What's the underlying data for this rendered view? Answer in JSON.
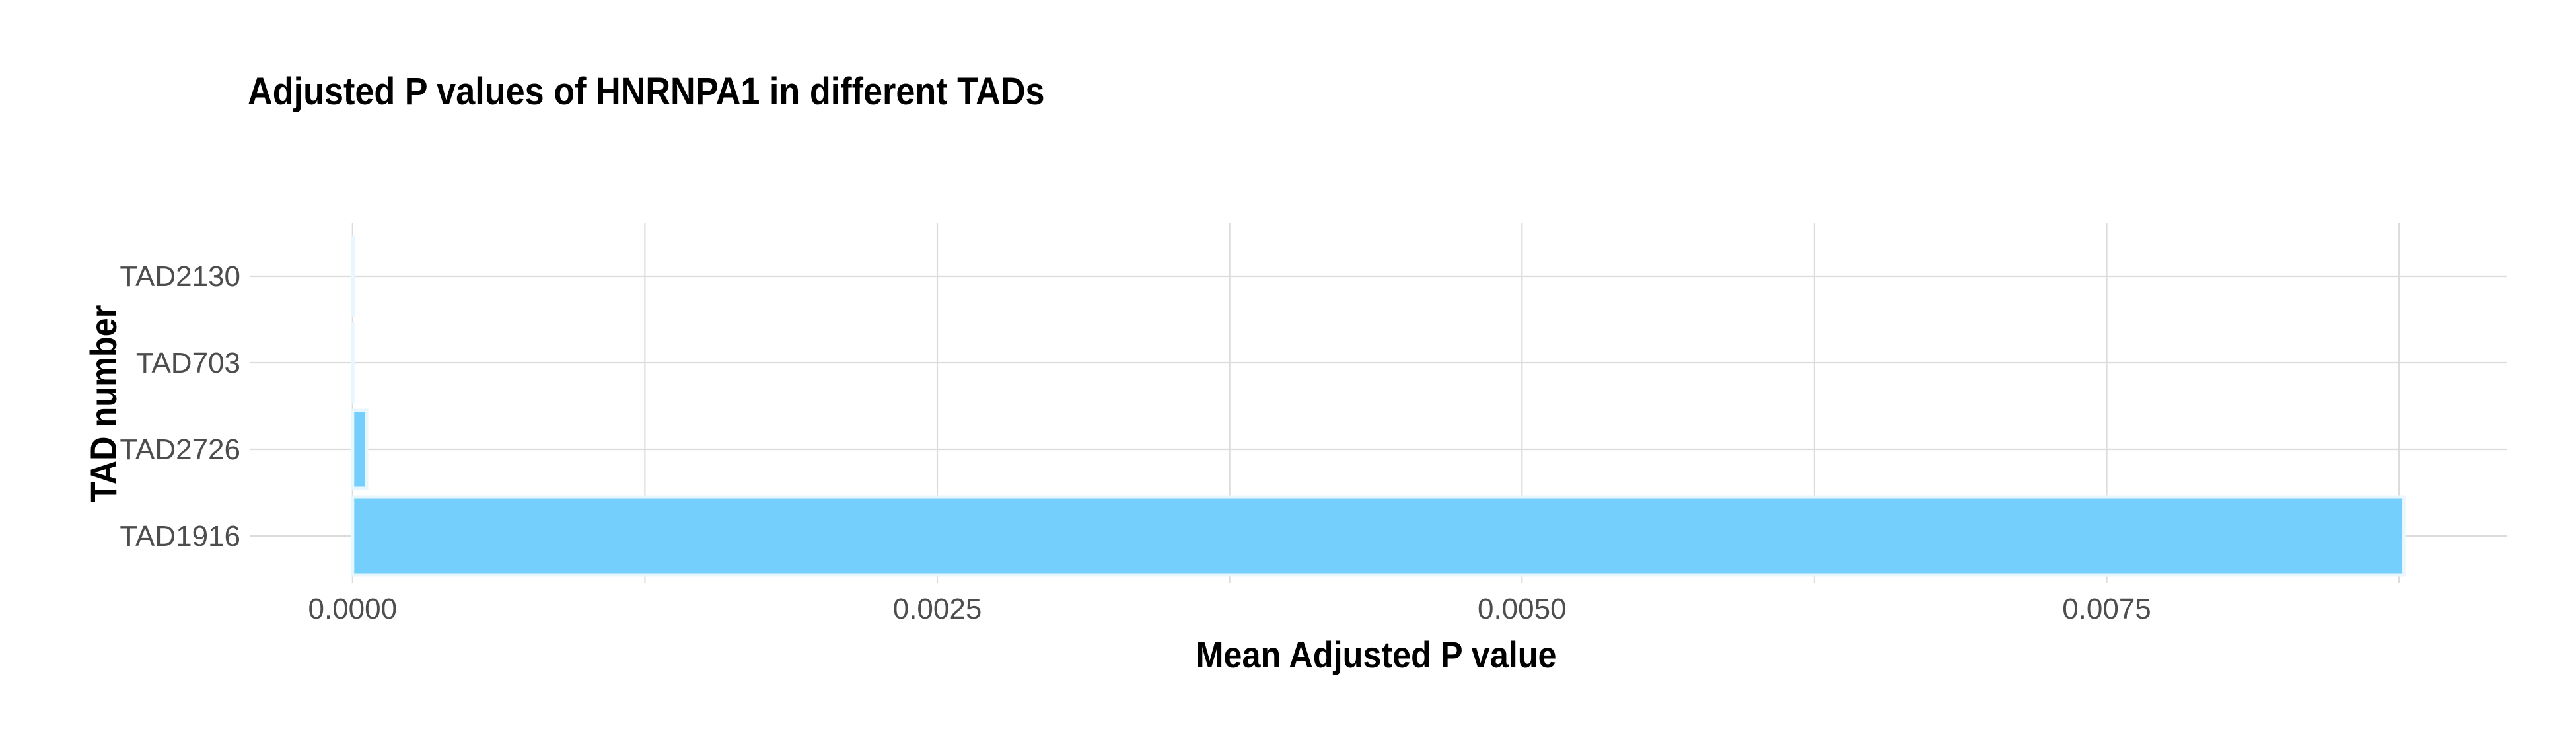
{
  "chart_data": {
    "type": "bar",
    "orientation": "horizontal",
    "title": "Adjusted P values of HNRNPA1 in different TADs",
    "xlabel": "Mean Adjusted P value",
    "ylabel": "TAD number",
    "categories": [
      "TAD2130",
      "TAD703",
      "TAD2726",
      "TAD1916"
    ],
    "values": [
      2e-06,
      1e-06,
      6e-05,
      0.00877
    ],
    "xlim": [
      -0.00044,
      0.00921
    ],
    "xticks": [
      0,
      0.0025,
      0.005,
      0.0075
    ],
    "xtick_labels": [
      "0.0000",
      "0.0025",
      "0.0050",
      "0.0075"
    ],
    "grid": true,
    "legend": "none",
    "colors": {
      "bar": "#75CFFC",
      "bar_edge": "#E8F6FE",
      "grid": "#dcdcdc",
      "tick_text": "#4d4d4d"
    }
  }
}
